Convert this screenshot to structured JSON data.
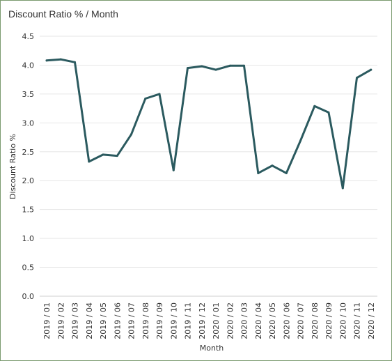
{
  "chart_data": {
    "type": "line",
    "title": "Discount Ratio % / Month",
    "xlabel": "Month",
    "ylabel": "Discount Ratio %",
    "ylim": [
      0,
      4.5
    ],
    "yticks": [
      "0.0",
      "0.5",
      "1.0",
      "1.5",
      "2.0",
      "2.5",
      "3.0",
      "3.5",
      "4.0",
      "4.5"
    ],
    "grid": true,
    "categories": [
      "2019 / 01",
      "2019 / 02",
      "2019 / 03",
      "2019 / 04",
      "2019 / 05",
      "2019 / 06",
      "2019 / 07",
      "2019 / 08",
      "2019 / 09",
      "2019 / 10",
      "2019 / 11",
      "2019 / 12",
      "2020 / 01",
      "2020 / 02",
      "2020 / 03",
      "2020 / 04",
      "2020 / 05",
      "2020 / 06",
      "2020 / 07",
      "2020 / 08",
      "2020 / 09",
      "2020 / 10",
      "2020 / 11",
      "2020 / 12"
    ],
    "series": [
      {
        "values": [
          4.08,
          4.1,
          4.05,
          2.33,
          2.45,
          2.43,
          2.8,
          3.42,
          3.5,
          2.18,
          3.95,
          3.98,
          3.92,
          3.99,
          3.99,
          2.13,
          2.26,
          2.13,
          2.69,
          3.29,
          3.18,
          1.87,
          3.78,
          3.92
        ],
        "color": "#2b5a5f"
      }
    ]
  }
}
